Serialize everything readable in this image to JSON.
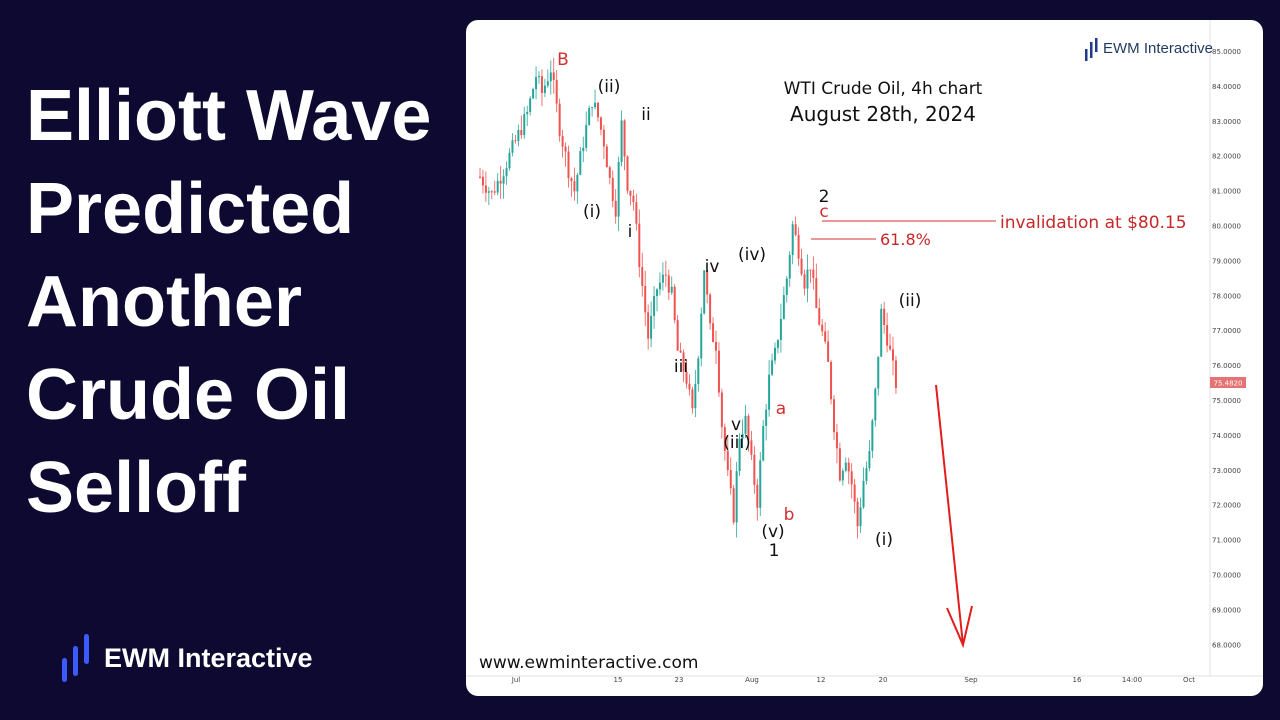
{
  "headline": {
    "lines": [
      "Elliott Wave",
      "Predicted",
      "Another",
      "Crude Oil",
      "Selloff"
    ]
  },
  "brand": {
    "name": "EWM Interactive",
    "icon": "bars-logo-icon",
    "color": "#3b5bfd"
  },
  "colors": {
    "background": "#0d0930",
    "bull": "#26a69a",
    "bear": "#ef5350",
    "wave_red": "#d32f2f",
    "wave_black": "#111111",
    "price_tag": "#e57373"
  },
  "chart_data": {
    "type": "candlestick",
    "logo": "EWM Interactive",
    "title": "WTI Crude Oil, 4h chart",
    "subtitle": "August 28th, 2024",
    "watermark": "www.ewminteractive.com",
    "x_ticks": [
      "Jul",
      "15",
      "23",
      "Aug",
      "12",
      "20",
      "Sep",
      "16",
      "14:00",
      "Oct"
    ],
    "y_ticks": [
      "85.0000",
      "84.0000",
      "83.0000",
      "82.0000",
      "81.0000",
      "80.0000",
      "79.0000",
      "78.0000",
      "77.0000",
      "76.0000",
      "75.0000",
      "74.0000",
      "73.0000",
      "72.0000",
      "71.0000",
      "70.0000",
      "69.0000",
      "68.0000"
    ],
    "ylim": [
      67.5,
      85.5
    ],
    "last_price": "75.4820",
    "price_path": [
      [
        0,
        81.4
      ],
      [
        4,
        80.9
      ],
      [
        8,
        81.6
      ],
      [
        12,
        82.4
      ],
      [
        16,
        83.2
      ],
      [
        19,
        84.3
      ],
      [
        21,
        83.8
      ],
      [
        24,
        84.5
      ],
      [
        27,
        82.8
      ],
      [
        30,
        81.6
      ],
      [
        32,
        81.0
      ],
      [
        35,
        82.4
      ],
      [
        38,
        83.6
      ],
      [
        40,
        83.1
      ],
      [
        42,
        82.4
      ],
      [
        44,
        81.3
      ],
      [
        46,
        80.5
      ],
      [
        48,
        82.9
      ],
      [
        50,
        81.2
      ],
      [
        52,
        80.7
      ],
      [
        54,
        79.0
      ],
      [
        57,
        76.8
      ],
      [
        60,
        78.2
      ],
      [
        63,
        78.6
      ],
      [
        65,
        78.0
      ],
      [
        67,
        76.4
      ],
      [
        70,
        75.6
      ],
      [
        72,
        74.6
      ],
      [
        74,
        76.4
      ],
      [
        76,
        78.8
      ],
      [
        78,
        77.0
      ],
      [
        80,
        76.6
      ],
      [
        82,
        74.3
      ],
      [
        84,
        72.8
      ],
      [
        86,
        71.7
      ],
      [
        88,
        74.0
      ],
      [
        90,
        74.4
      ],
      [
        92,
        73.2
      ],
      [
        94,
        72.1
      ],
      [
        96,
        74.2
      ],
      [
        98,
        75.6
      ],
      [
        100,
        76.3
      ],
      [
        102,
        77.4
      ],
      [
        104,
        78.5
      ],
      [
        106,
        80.0
      ],
      [
        108,
        79.3
      ],
      [
        110,
        78.4
      ],
      [
        112,
        78.9
      ],
      [
        114,
        77.6
      ],
      [
        116,
        76.9
      ],
      [
        118,
        76.0
      ],
      [
        120,
        74.3
      ],
      [
        122,
        72.9
      ],
      [
        124,
        73.4
      ],
      [
        126,
        72.6
      ],
      [
        128,
        71.4
      ],
      [
        130,
        72.7
      ],
      [
        132,
        73.4
      ],
      [
        134,
        75.2
      ],
      [
        136,
        77.5
      ],
      [
        138,
        76.8
      ],
      [
        140,
        75.9
      ],
      [
        141,
        75.48
      ]
    ],
    "wave_labels": [
      {
        "text": "B",
        "color": "red"
      },
      {
        "text": "(ii)",
        "color": "black"
      },
      {
        "text": "ii",
        "color": "black"
      },
      {
        "text": "(i)",
        "color": "black"
      },
      {
        "text": "i",
        "color": "black"
      },
      {
        "text": "iv",
        "color": "black"
      },
      {
        "text": "(iv)",
        "color": "black"
      },
      {
        "text": "iii",
        "color": "black"
      },
      {
        "text": "v",
        "color": "black"
      },
      {
        "text": "(iii)",
        "color": "black"
      },
      {
        "text": "a",
        "color": "red"
      },
      {
        "text": "b",
        "color": "red"
      },
      {
        "text": "(v)",
        "color": "black"
      },
      {
        "text": "1",
        "color": "black"
      },
      {
        "text": "2",
        "color": "black"
      },
      {
        "text": "c",
        "color": "red"
      },
      {
        "text": "(ii)",
        "color": "black"
      },
      {
        "text": "(i)",
        "color": "black"
      }
    ],
    "invalidation": {
      "label": "invalidation at $80.15",
      "price": 80.15
    },
    "fib": {
      "label": "61.8%",
      "price": 79.65
    },
    "projection": {
      "from_price": 75.2,
      "to_price": 67.8,
      "color": "red"
    }
  }
}
